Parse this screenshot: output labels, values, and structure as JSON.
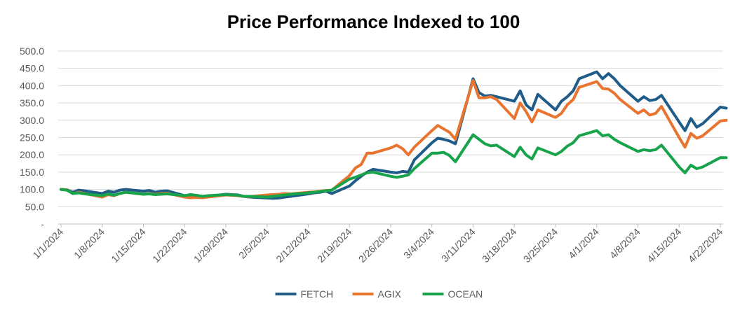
{
  "chart_data": {
    "type": "line",
    "title": "Price Performance Indexed to 100",
    "xlabel": "",
    "ylabel": "",
    "ylim": [
      0,
      500
    ],
    "yticks": [
      "-",
      "50.0",
      "100.0",
      "150.0",
      "200.0",
      "250.0",
      "300.0",
      "350.0",
      "400.0",
      "450.0",
      "500.0"
    ],
    "xticks": [
      "1/1/2024",
      "1/8/2024",
      "1/15/2024",
      "1/22/2024",
      "1/29/2024",
      "2/5/2024",
      "2/12/2024",
      "2/19/2024",
      "2/26/2024",
      "3/4/2024",
      "3/11/2024",
      "3/18/2024",
      "3/25/2024",
      "4/1/2024",
      "4/8/2024",
      "4/15/2024",
      "4/22/2024"
    ],
    "grid": "horizontal",
    "legend_position": "bottom",
    "series": [
      {
        "name": "FETCH",
        "color": "#1F5C87",
        "points": [
          [
            "1/1/2024",
            100
          ],
          [
            "1/2/2024",
            99
          ],
          [
            "1/3/2024",
            92
          ],
          [
            "1/4/2024",
            98
          ],
          [
            "1/5/2024",
            96
          ],
          [
            "1/8/2024",
            88
          ],
          [
            "1/9/2024",
            95
          ],
          [
            "1/10/2024",
            92
          ],
          [
            "1/11/2024",
            98
          ],
          [
            "1/12/2024",
            100
          ],
          [
            "1/15/2024",
            95
          ],
          [
            "1/16/2024",
            97
          ],
          [
            "1/17/2024",
            92
          ],
          [
            "1/18/2024",
            95
          ],
          [
            "1/19/2024",
            96
          ],
          [
            "1/22/2024",
            82
          ],
          [
            "1/23/2024",
            82
          ],
          [
            "1/24/2024",
            80
          ],
          [
            "1/25/2024",
            78
          ],
          [
            "1/26/2024",
            80
          ],
          [
            "1/29/2024",
            86
          ],
          [
            "1/30/2024",
            85
          ],
          [
            "1/31/2024",
            84
          ],
          [
            "2/1/2024",
            80
          ],
          [
            "2/2/2024",
            78
          ],
          [
            "2/5/2024",
            75
          ],
          [
            "2/6/2024",
            74
          ],
          [
            "2/7/2024",
            75
          ],
          [
            "2/8/2024",
            78
          ],
          [
            "2/9/2024",
            80
          ],
          [
            "2/12/2024",
            87
          ],
          [
            "2/13/2024",
            90
          ],
          [
            "2/14/2024",
            92
          ],
          [
            "2/15/2024",
            95
          ],
          [
            "2/16/2024",
            88
          ],
          [
            "2/19/2024",
            110
          ],
          [
            "2/20/2024",
            125
          ],
          [
            "2/21/2024",
            138
          ],
          [
            "2/22/2024",
            150
          ],
          [
            "2/23/2024",
            158
          ],
          [
            "2/26/2024",
            150
          ],
          [
            "2/27/2024",
            148
          ],
          [
            "2/28/2024",
            152
          ],
          [
            "2/29/2024",
            150
          ],
          [
            "3/1/2024",
            185
          ],
          [
            "3/4/2024",
            235
          ],
          [
            "3/5/2024",
            248
          ],
          [
            "3/6/2024",
            245
          ],
          [
            "3/7/2024",
            240
          ],
          [
            "3/8/2024",
            232
          ],
          [
            "3/11/2024",
            420
          ],
          [
            "3/12/2024",
            380
          ],
          [
            "3/13/2024",
            370
          ],
          [
            "3/14/2024",
            372
          ],
          [
            "3/15/2024",
            368
          ],
          [
            "3/18/2024",
            355
          ],
          [
            "3/19/2024",
            385
          ],
          [
            "3/20/2024",
            345
          ],
          [
            "3/21/2024",
            330
          ],
          [
            "3/22/2024",
            375
          ],
          [
            "3/25/2024",
            330
          ],
          [
            "3/26/2024",
            355
          ],
          [
            "3/27/2024",
            368
          ],
          [
            "3/28/2024",
            385
          ],
          [
            "3/29/2024",
            420
          ],
          [
            "4/1/2024",
            440
          ],
          [
            "4/2/2024",
            420
          ],
          [
            "4/3/2024",
            435
          ],
          [
            "4/4/2024",
            420
          ],
          [
            "4/5/2024",
            400
          ],
          [
            "4/8/2024",
            355
          ],
          [
            "4/9/2024",
            368
          ],
          [
            "4/10/2024",
            357
          ],
          [
            "4/11/2024",
            360
          ],
          [
            "4/12/2024",
            372
          ],
          [
            "4/15/2024",
            295
          ],
          [
            "4/16/2024",
            270
          ],
          [
            "4/17/2024",
            305
          ],
          [
            "4/18/2024",
            280
          ],
          [
            "4/19/2024",
            290
          ],
          [
            "4/22/2024",
            338
          ],
          [
            "4/23/2024",
            335
          ]
        ]
      },
      {
        "name": "AGIX",
        "color": "#E9742F",
        "points": [
          [
            "1/1/2024",
            100
          ],
          [
            "1/2/2024",
            99
          ],
          [
            "1/3/2024",
            88
          ],
          [
            "1/4/2024",
            92
          ],
          [
            "1/5/2024",
            88
          ],
          [
            "1/8/2024",
            78
          ],
          [
            "1/9/2024",
            85
          ],
          [
            "1/10/2024",
            82
          ],
          [
            "1/11/2024",
            88
          ],
          [
            "1/12/2024",
            92
          ],
          [
            "1/15/2024",
            86
          ],
          [
            "1/16/2024",
            88
          ],
          [
            "1/17/2024",
            86
          ],
          [
            "1/18/2024",
            88
          ],
          [
            "1/19/2024",
            89
          ],
          [
            "1/22/2024",
            78
          ],
          [
            "1/23/2024",
            76
          ],
          [
            "1/24/2024",
            77
          ],
          [
            "1/25/2024",
            76
          ],
          [
            "1/26/2024",
            78
          ],
          [
            "1/29/2024",
            84
          ],
          [
            "1/30/2024",
            83
          ],
          [
            "1/31/2024",
            82
          ],
          [
            "2/1/2024",
            80
          ],
          [
            "2/2/2024",
            79
          ],
          [
            "2/5/2024",
            84
          ],
          [
            "2/6/2024",
            85
          ],
          [
            "2/7/2024",
            86
          ],
          [
            "2/8/2024",
            88
          ],
          [
            "2/9/2024",
            87
          ],
          [
            "2/12/2024",
            92
          ],
          [
            "2/13/2024",
            93
          ],
          [
            "2/14/2024",
            95
          ],
          [
            "2/15/2024",
            97
          ],
          [
            "2/16/2024",
            98
          ],
          [
            "2/19/2024",
            140
          ],
          [
            "2/20/2024",
            162
          ],
          [
            "2/21/2024",
            172
          ],
          [
            "2/22/2024",
            205
          ],
          [
            "2/23/2024",
            205
          ],
          [
            "2/26/2024",
            220
          ],
          [
            "2/27/2024",
            228
          ],
          [
            "2/28/2024",
            218
          ],
          [
            "2/29/2024",
            200
          ],
          [
            "3/1/2024",
            222
          ],
          [
            "3/4/2024",
            270
          ],
          [
            "3/5/2024",
            285
          ],
          [
            "3/6/2024",
            275
          ],
          [
            "3/7/2024",
            265
          ],
          [
            "3/8/2024",
            245
          ],
          [
            "3/11/2024",
            415
          ],
          [
            "3/12/2024",
            365
          ],
          [
            "3/13/2024",
            365
          ],
          [
            "3/14/2024",
            368
          ],
          [
            "3/15/2024",
            360
          ],
          [
            "3/18/2024",
            305
          ],
          [
            "3/19/2024",
            350
          ],
          [
            "3/20/2024",
            325
          ],
          [
            "3/21/2024",
            295
          ],
          [
            "3/22/2024",
            330
          ],
          [
            "3/25/2024",
            308
          ],
          [
            "3/26/2024",
            320
          ],
          [
            "3/27/2024",
            345
          ],
          [
            "3/28/2024",
            360
          ],
          [
            "3/29/2024",
            395
          ],
          [
            "4/1/2024",
            412
          ],
          [
            "4/2/2024",
            392
          ],
          [
            "4/3/2024",
            390
          ],
          [
            "4/4/2024",
            378
          ],
          [
            "4/5/2024",
            360
          ],
          [
            "4/8/2024",
            320
          ],
          [
            "4/9/2024",
            330
          ],
          [
            "4/10/2024",
            315
          ],
          [
            "4/11/2024",
            320
          ],
          [
            "4/12/2024",
            340
          ],
          [
            "4/15/2024",
            250
          ],
          [
            "4/16/2024",
            222
          ],
          [
            "4/17/2024",
            262
          ],
          [
            "4/18/2024",
            248
          ],
          [
            "4/19/2024",
            255
          ],
          [
            "4/22/2024",
            298
          ],
          [
            "4/23/2024",
            300
          ]
        ]
      },
      {
        "name": "OCEAN",
        "color": "#16A34A",
        "points": [
          [
            "1/1/2024",
            100
          ],
          [
            "1/2/2024",
            98
          ],
          [
            "1/3/2024",
            88
          ],
          [
            "1/4/2024",
            90
          ],
          [
            "1/5/2024",
            87
          ],
          [
            "1/8/2024",
            82
          ],
          [
            "1/9/2024",
            87
          ],
          [
            "1/10/2024",
            83
          ],
          [
            "1/11/2024",
            88
          ],
          [
            "1/12/2024",
            92
          ],
          [
            "1/15/2024",
            86
          ],
          [
            "1/16/2024",
            87
          ],
          [
            "1/17/2024",
            85
          ],
          [
            "1/18/2024",
            86
          ],
          [
            "1/19/2024",
            87
          ],
          [
            "1/22/2024",
            82
          ],
          [
            "1/23/2024",
            85
          ],
          [
            "1/24/2024",
            83
          ],
          [
            "1/25/2024",
            80
          ],
          [
            "1/26/2024",
            82
          ],
          [
            "1/29/2024",
            85
          ],
          [
            "1/30/2024",
            84
          ],
          [
            "1/31/2024",
            83
          ],
          [
            "2/1/2024",
            80
          ],
          [
            "2/2/2024",
            80
          ],
          [
            "2/5/2024",
            78
          ],
          [
            "2/6/2024",
            80
          ],
          [
            "2/7/2024",
            82
          ],
          [
            "2/8/2024",
            84
          ],
          [
            "2/9/2024",
            86
          ],
          [
            "2/12/2024",
            90
          ],
          [
            "2/13/2024",
            92
          ],
          [
            "2/14/2024",
            94
          ],
          [
            "2/15/2024",
            96
          ],
          [
            "2/16/2024",
            98
          ],
          [
            "2/19/2024",
            130
          ],
          [
            "2/20/2024",
            135
          ],
          [
            "2/21/2024",
            142
          ],
          [
            "2/22/2024",
            148
          ],
          [
            "2/23/2024",
            150
          ],
          [
            "2/26/2024",
            138
          ],
          [
            "2/27/2024",
            135
          ],
          [
            "2/28/2024",
            138
          ],
          [
            "2/29/2024",
            142
          ],
          [
            "3/1/2024",
            160
          ],
          [
            "3/4/2024",
            205
          ],
          [
            "3/5/2024",
            205
          ],
          [
            "3/6/2024",
            207
          ],
          [
            "3/7/2024",
            198
          ],
          [
            "3/8/2024",
            180
          ],
          [
            "3/11/2024",
            258
          ],
          [
            "3/12/2024",
            245
          ],
          [
            "3/13/2024",
            232
          ],
          [
            "3/14/2024",
            226
          ],
          [
            "3/15/2024",
            228
          ],
          [
            "3/18/2024",
            195
          ],
          [
            "3/19/2024",
            222
          ],
          [
            "3/20/2024",
            200
          ],
          [
            "3/21/2024",
            188
          ],
          [
            "3/22/2024",
            220
          ],
          [
            "3/25/2024",
            200
          ],
          [
            "3/26/2024",
            210
          ],
          [
            "3/27/2024",
            225
          ],
          [
            "3/28/2024",
            235
          ],
          [
            "3/29/2024",
            255
          ],
          [
            "4/1/2024",
            270
          ],
          [
            "4/2/2024",
            255
          ],
          [
            "4/3/2024",
            258
          ],
          [
            "4/4/2024",
            245
          ],
          [
            "4/5/2024",
            235
          ],
          [
            "4/8/2024",
            210
          ],
          [
            "4/9/2024",
            215
          ],
          [
            "4/10/2024",
            212
          ],
          [
            "4/11/2024",
            215
          ],
          [
            "4/12/2024",
            228
          ],
          [
            "4/15/2024",
            165
          ],
          [
            "4/16/2024",
            148
          ],
          [
            "4/17/2024",
            170
          ],
          [
            "4/18/2024",
            160
          ],
          [
            "4/19/2024",
            165
          ],
          [
            "4/22/2024",
            192
          ],
          [
            "4/23/2024",
            192
          ]
        ]
      }
    ]
  }
}
